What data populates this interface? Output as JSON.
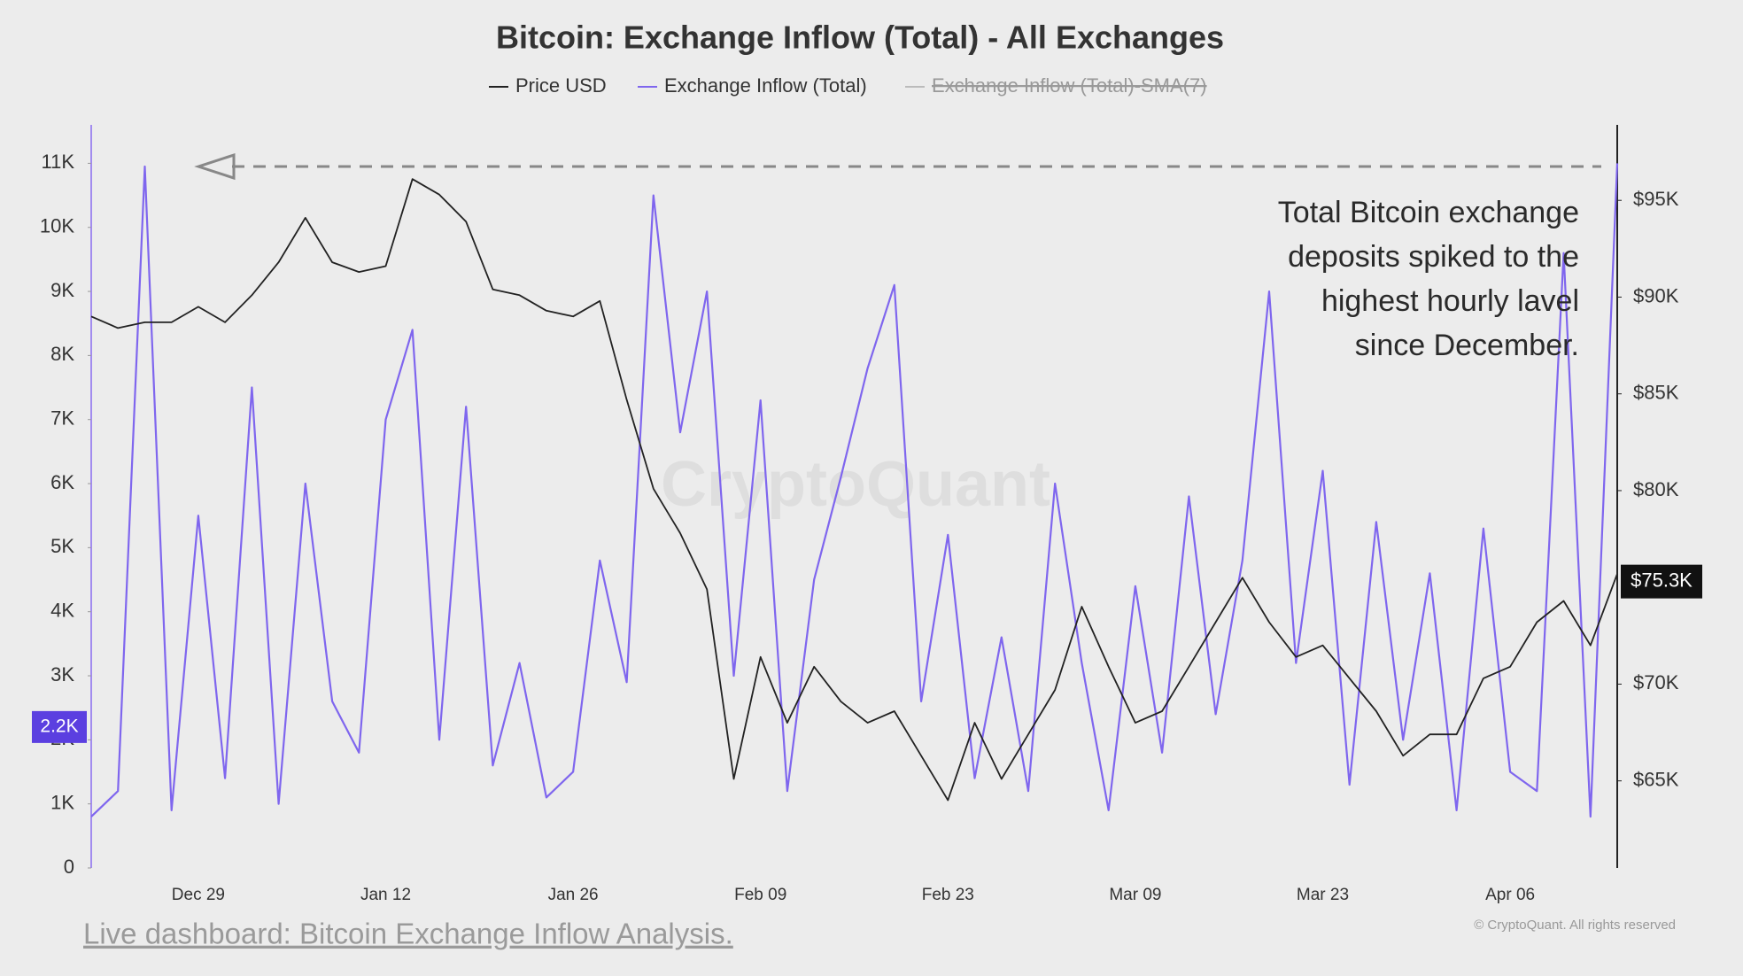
{
  "chart_data": {
    "type": "line",
    "title": "Bitcoin: Exchange Inflow (Total) - All Exchanges",
    "categories": [
      null,
      null,
      null,
      null,
      "Dec 29",
      null,
      null,
      null,
      null,
      null,
      null,
      "Jan 12",
      null,
      null,
      null,
      null,
      null,
      null,
      "Jan 26",
      null,
      null,
      null,
      null,
      null,
      null,
      "Feb 09",
      null,
      null,
      null,
      null,
      null,
      null,
      "Feb 23",
      null,
      null,
      null,
      null,
      null,
      null,
      "Mar 09",
      null,
      null,
      null,
      null,
      null,
      null,
      "Mar 23",
      null,
      null,
      null,
      null,
      null,
      null,
      "Apr 06",
      null,
      null,
      null,
      null
    ],
    "series": [
      {
        "name": "Price USD",
        "color": "#222222",
        "axis": "y2",
        "values": [
          89000,
          88400,
          88700,
          88700,
          89500,
          88700,
          90100,
          91800,
          94100,
          91800,
          91300,
          91600,
          96100,
          95300,
          93900,
          90400,
          90100,
          89300,
          89000,
          89800,
          84700,
          80100,
          77800,
          74900,
          65100,
          71400,
          68000,
          70900,
          69100,
          68000,
          68600,
          66300,
          64000,
          68000,
          65100,
          67400,
          69700,
          74000,
          70900,
          68000,
          68600,
          70900,
          73200,
          75500,
          73200,
          71400,
          72000,
          70300,
          68600,
          66300,
          67400,
          67400,
          70300,
          70900,
          73200,
          74300,
          72000,
          75700
        ]
      },
      {
        "name": "Exchange Inflow (Total)",
        "color": "#7f66ee",
        "values": [
          800,
          1200,
          10950,
          900,
          5500,
          1400,
          7500,
          1000,
          6000,
          2600,
          1800,
          7000,
          8400,
          2000,
          7200,
          1600,
          3200,
          1100,
          1500,
          4800,
          2900,
          10500,
          6800,
          9000,
          3000,
          7300,
          1200,
          4500,
          6100,
          7800,
          9100,
          2600,
          5200,
          1400,
          3600,
          1200,
          6000,
          3200,
          900,
          4400,
          1800,
          5800,
          2400,
          4800,
          9000,
          3200,
          6200,
          1300,
          5400,
          2000,
          4600,
          900,
          5300,
          1500,
          1200,
          9600,
          800,
          11000
        ]
      }
    ],
    "legend_disabled": {
      "name": "Exchange Inflow (Total)-SMA(7)",
      "color": "#bbbbbb"
    },
    "ylim": [
      0,
      11600
    ],
    "yticks": [
      0,
      {
        "value": 1000,
        "label": "1K"
      },
      {
        "value": 2000,
        "label": "2K"
      },
      {
        "value": 3000,
        "label": "3K"
      },
      {
        "value": 4000,
        "label": "4K"
      },
      {
        "value": 5000,
        "label": "5K"
      },
      {
        "value": 6000,
        "label": "6K"
      },
      {
        "value": 7000,
        "label": "7K"
      },
      {
        "value": 8000,
        "label": "8K"
      },
      {
        "value": 9000,
        "label": "9K"
      },
      {
        "value": 10000,
        "label": "10K"
      },
      {
        "value": 11000,
        "label": "11K"
      }
    ],
    "y2lim": [
      60500,
      98900
    ],
    "y2ticks": [
      {
        "value": 65000,
        "label": "$65K"
      },
      {
        "value": 70000,
        "label": "$70K"
      },
      {
        "value": 80000,
        "label": "$80K"
      },
      {
        "value": 85000,
        "label": "$85K"
      },
      {
        "value": 90000,
        "label": "$90K"
      },
      {
        "value": 95000,
        "label": "$95K"
      }
    ],
    "badge_left": {
      "value": 2200,
      "label": "2.2K"
    },
    "badge_right": {
      "value": 75300,
      "label": "$75.3K"
    },
    "reference_value": 10950,
    "annotation": [
      "Total Bitcoin exchange",
      "deposits spiked to the",
      "highest hourly lavel",
      "since December."
    ],
    "watermark": "CryptoQuant",
    "footer_link": "Live dashboard: Bitcoin Exchange Inflow Analysis.",
    "copyright": "© CryptoQuant. All rights reserved"
  }
}
